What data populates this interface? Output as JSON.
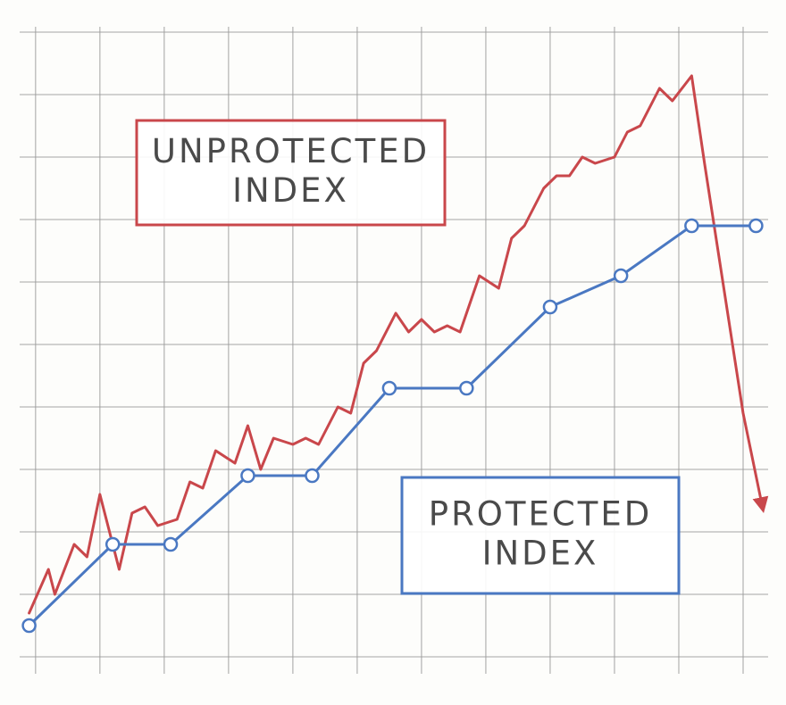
{
  "chart_data": {
    "type": "line",
    "xlim": [
      -0.4,
      11.5
    ],
    "ylim": [
      -0.5,
      10.5
    ],
    "xticks": [
      0,
      1,
      2,
      3,
      4,
      5,
      6,
      7,
      8,
      9,
      10,
      11
    ],
    "yticks": [
      0,
      1,
      2,
      3,
      4,
      5,
      6,
      7,
      8,
      9,
      10
    ],
    "grid": true,
    "series": [
      {
        "name": "UNPROTECTED INDEX",
        "color": "#c9474b",
        "markers": false,
        "arrow": true,
        "x": [
          -0.1,
          0.2,
          0.3,
          0.6,
          0.8,
          1.0,
          1.3,
          1.5,
          1.7,
          1.9,
          2.2,
          2.4,
          2.6,
          2.8,
          3.1,
          3.3,
          3.5,
          3.7,
          4.0,
          4.2,
          4.4,
          4.7,
          4.9,
          5.1,
          5.3,
          5.6,
          5.8,
          6.0,
          6.2,
          6.4,
          6.6,
          6.9,
          7.2,
          7.4,
          7.6,
          7.9,
          8.1,
          8.3,
          8.5,
          8.7,
          9.0,
          9.2,
          9.4,
          9.7,
          9.9,
          10.2,
          10.4,
          10.7,
          11.0,
          11.3
        ],
        "values": [
          0.7,
          1.4,
          1.0,
          1.8,
          1.6,
          2.6,
          1.4,
          2.3,
          2.4,
          2.1,
          2.2,
          2.8,
          2.7,
          3.3,
          3.1,
          3.7,
          3.0,
          3.5,
          3.4,
          3.5,
          3.4,
          4.0,
          3.9,
          4.7,
          4.9,
          5.5,
          5.2,
          5.4,
          5.2,
          5.3,
          5.2,
          6.1,
          5.9,
          6.7,
          6.9,
          7.5,
          7.7,
          7.7,
          8.0,
          7.9,
          8.0,
          8.4,
          8.5,
          9.1,
          8.9,
          9.3,
          7.9,
          5.9,
          3.9,
          2.4
        ],
        "label_lines": [
          "UNPROTECTED",
          "INDEX"
        ]
      },
      {
        "name": "PROTECTED INDEX",
        "color": "#4a78c2",
        "markers": true,
        "arrow": false,
        "x": [
          -0.1,
          1.2,
          2.1,
          3.3,
          4.3,
          5.5,
          6.7,
          8.0,
          9.1,
          10.2,
          11.2
        ],
        "values": [
          0.5,
          1.8,
          1.8,
          2.9,
          2.9,
          4.3,
          4.3,
          5.6,
          6.1,
          6.9,
          6.9
        ],
        "label_lines": [
          "PROTECTED",
          "INDEX"
        ]
      }
    ]
  }
}
